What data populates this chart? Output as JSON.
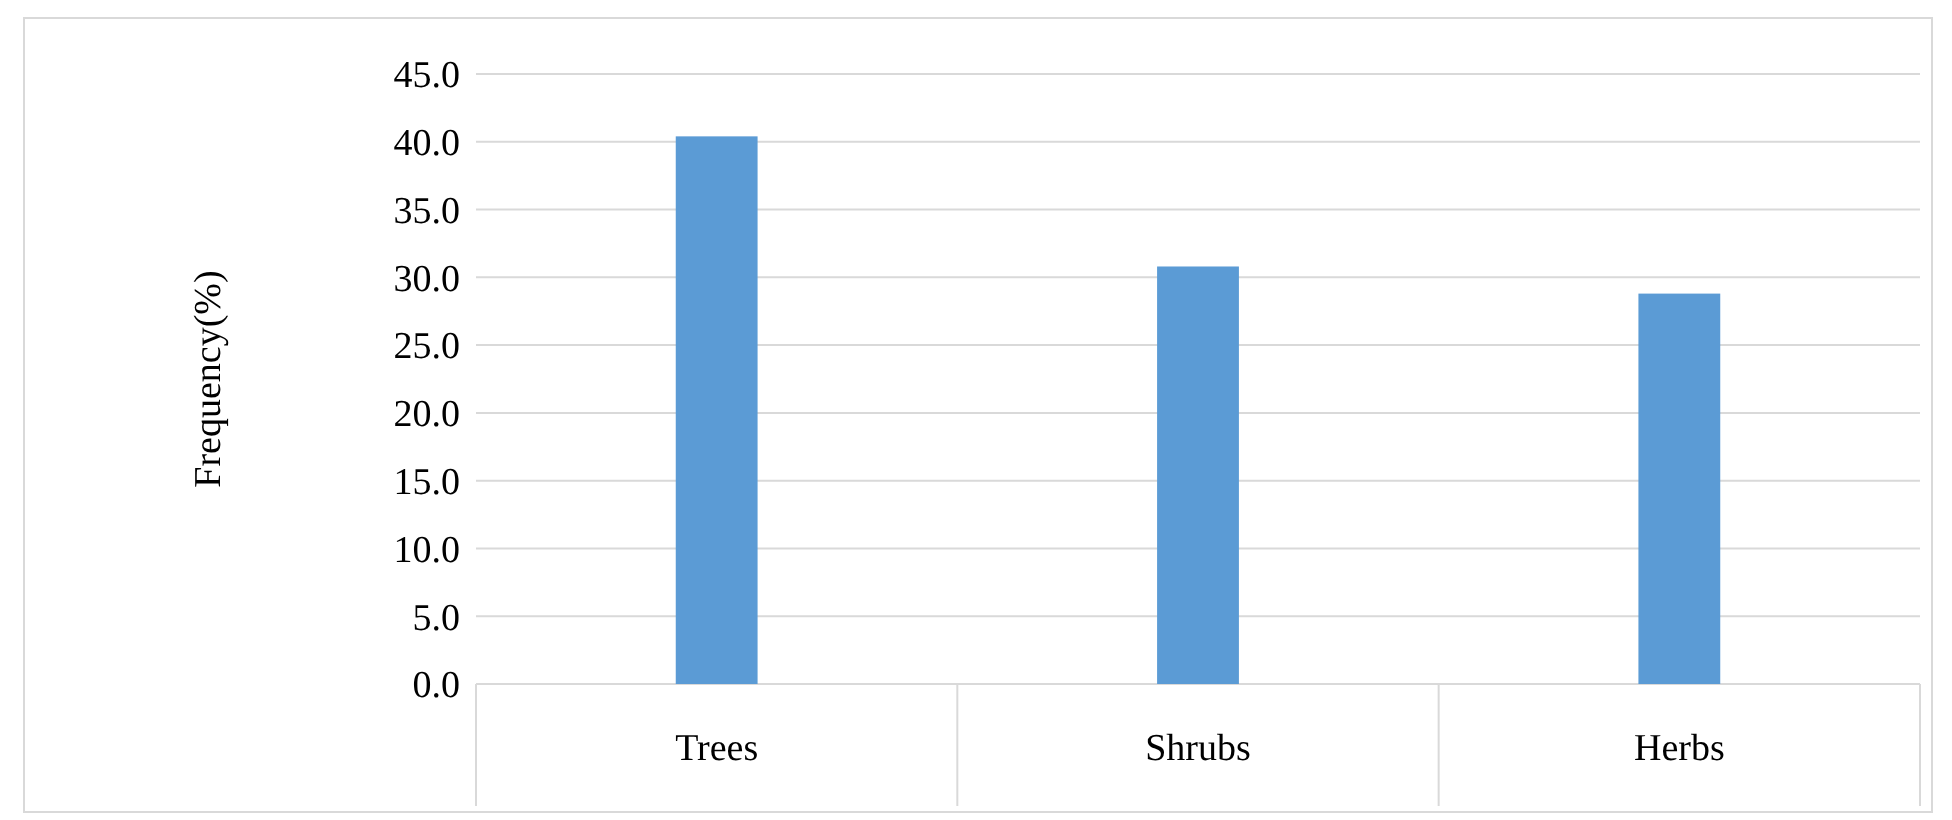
{
  "chart_data": {
    "type": "bar",
    "ylabel": "Frequency(%)",
    "categories": [
      "Trees",
      "Shrubs",
      "Herbs"
    ],
    "values": [
      40.4,
      30.8,
      28.8
    ],
    "color": "#5b9bd5",
    "ylim": [
      0,
      45
    ],
    "yticks": [
      {
        "value": 0,
        "label": "0.0"
      },
      {
        "value": 5,
        "label": "5.0"
      },
      {
        "value": 10,
        "label": "10.0"
      },
      {
        "value": 15,
        "label": "15.0"
      },
      {
        "value": 20,
        "label": "20.0"
      },
      {
        "value": 25,
        "label": "25.0"
      },
      {
        "value": 30,
        "label": "30.0"
      },
      {
        "value": 35,
        "label": "35.0"
      },
      {
        "value": 40,
        "label": "40.0"
      },
      {
        "value": 45,
        "label": "45.0"
      }
    ],
    "grid": "y"
  }
}
